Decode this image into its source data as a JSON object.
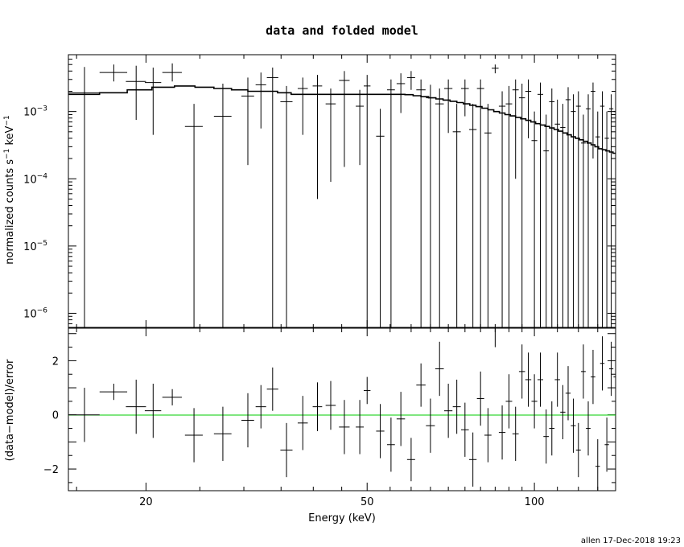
{
  "chart_data": [
    {
      "type": "scatter",
      "title": "data and folded model",
      "xlabel": "",
      "ylabel": "normalized counts s",
      "ylabel_sup1": "−1",
      "ylabel_mid": " keV",
      "ylabel_sup2": "−1",
      "yscale": "log",
      "xscale": "log",
      "xlim": [
        14.5,
        140
      ],
      "ylim": [
        6e-07,
        0.007
      ],
      "ytick_labels": [
        {
          "base": "10",
          "exp": "−3",
          "value": 0.001
        },
        {
          "base": "10",
          "exp": "−4",
          "value": 0.0001
        },
        {
          "base": "10",
          "exp": "−5",
          "value": 1e-05
        },
        {
          "base": "10",
          "exp": "−6",
          "value": 1e-06
        }
      ],
      "series": [
        {
          "kind": "data",
          "x": [
            15.5,
            17.5,
            19.2,
            20.6,
            22.3,
            24.4,
            27.5,
            30.5,
            32.2,
            33.8,
            35.8,
            38.3,
            40.7,
            43.0,
            45.5,
            48.5,
            50.0,
            52.8,
            55.2,
            57.5,
            60.0,
            62.5,
            65.0,
            67.5,
            70.0,
            72.5,
            75.0,
            77.5,
            80.0,
            82.5,
            85.0,
            87.5,
            90.0,
            92.5,
            95.0,
            97.5,
            100,
            102.5,
            105,
            107.5,
            110,
            112.5,
            115,
            117.5,
            120,
            122.5,
            125,
            127.5,
            130,
            132.5,
            135,
            137.5,
            140
          ],
          "xerr": [
            1.0,
            1.0,
            0.8,
            0.7,
            0.9,
            0.9,
            1.0,
            0.8,
            0.7,
            0.8,
            0.9,
            0.8,
            0.8,
            0.9,
            1.0,
            0.8,
            0.7,
            0.9,
            0.9,
            1.0,
            1.0,
            1.2,
            1.2,
            1.2,
            1.2,
            1.2,
            1.2,
            1.2,
            1.2,
            1.2,
            1.2,
            1.2,
            1.2,
            1.2,
            1.2,
            1.2,
            1.2,
            1.2,
            1.2,
            1.2,
            1.2,
            1.2,
            1.2,
            1.2,
            1.2,
            1.2,
            1.2,
            1.2,
            1.2,
            1.2,
            1.2,
            1.2,
            1.2
          ],
          "y": [
            0.0019,
            0.0038,
            0.0028,
            0.0027,
            0.0038,
            0.0006,
            0.00085,
            0.0017,
            0.0025,
            0.0032,
            0.0014,
            0.0022,
            0.0024,
            0.0013,
            0.0029,
            0.0012,
            0.0024,
            0.00043,
            0.0021,
            0.0026,
            0.0032,
            0.0021,
            0.0016,
            0.0013,
            0.0022,
            0.0005,
            0.0022,
            0.00054,
            0.0022,
            0.00048,
            0.0044,
            0.0012,
            0.0013,
            0.0021,
            0.0016,
            0.002,
            0.00037,
            0.0018,
            0.00026,
            0.0014,
            0.00065,
            0.00058,
            0.0015,
            0.001,
            0.0012,
            0.00034,
            0.0011,
            0.002,
            0.00042,
            0.0012,
            0.0004,
            0.0011,
            0.001
          ],
          "ylow": [
            6e-07,
            0.0028,
            0.00075,
            0.00045,
            0.0028,
            6e-07,
            6e-07,
            0.00016,
            0.00056,
            6e-07,
            6e-07,
            0.00045,
            5e-05,
            9e-05,
            0.00015,
            0.00016,
            6e-07,
            6e-07,
            6e-07,
            0.00095,
            0.0021,
            6e-07,
            6e-07,
            6e-07,
            0.00048,
            6e-07,
            0.00085,
            6e-07,
            6e-07,
            6e-07,
            0.0037,
            6e-07,
            6e-07,
            0.0001,
            6e-07,
            0.0004,
            6e-07,
            6e-07,
            6e-07,
            6e-07,
            6e-07,
            6e-07,
            6e-07,
            6e-07,
            6e-07,
            6e-07,
            6e-07,
            0.0002,
            6e-07,
            6e-07,
            6e-07,
            6e-07,
            6e-07
          ],
          "yhigh": [
            0.0046,
            0.005,
            0.0048,
            0.0045,
            0.0052,
            0.0013,
            0.0026,
            0.0032,
            0.0038,
            0.0045,
            0.0024,
            0.0032,
            0.0035,
            0.0022,
            0.004,
            0.0021,
            0.0035,
            0.0011,
            0.003,
            0.0037,
            0.004,
            0.003,
            0.0025,
            0.0022,
            0.003,
            0.0013,
            0.003,
            0.0013,
            0.003,
            0.0013,
            0.005,
            0.002,
            0.0024,
            0.003,
            0.0026,
            0.003,
            0.001,
            0.0027,
            0.0009,
            0.0022,
            0.0015,
            0.0013,
            0.0023,
            0.0018,
            0.002,
            0.0009,
            0.0018,
            0.0027,
            0.001,
            0.002,
            0.001,
            0.0018,
            0.0017
          ]
        },
        {
          "kind": "model",
          "x": [
            14.5,
            16.5,
            18.5,
            20.5,
            22.5,
            24.5,
            26.5,
            28.5,
            30.5,
            32.5,
            34.5,
            36.5,
            38.5,
            40.5,
            42.5,
            44.5,
            46.5,
            48.5,
            50.5,
            52.5,
            54.5,
            56.5,
            58.5,
            60.5,
            62.5,
            64.5,
            66.5,
            68.5,
            70.5,
            72.5,
            74.5,
            76.5,
            78.5,
            80.5,
            82.5,
            84.5,
            86.5,
            88.5,
            90.5,
            92.5,
            94.5,
            96.5,
            98.5,
            100.5,
            102.5,
            104.5,
            106.5,
            108.5,
            110.5,
            112.5,
            114.5,
            116.5,
            118.5,
            120.5,
            122.5,
            124.5,
            126.5,
            128.5,
            130.5,
            132.5,
            134.5,
            136.5,
            138.5,
            140
          ],
          "y": [
            0.0018,
            0.0019,
            0.0021,
            0.0023,
            0.0024,
            0.0023,
            0.0022,
            0.0021,
            0.002,
            0.002,
            0.0019,
            0.0018,
            0.0018,
            0.0018,
            0.0018,
            0.0018,
            0.0018,
            0.0018,
            0.0018,
            0.0018,
            0.0018,
            0.0018,
            0.00178,
            0.00172,
            0.00166,
            0.0016,
            0.00154,
            0.00148,
            0.00142,
            0.00136,
            0.0013,
            0.00124,
            0.00118,
            0.00112,
            0.00106,
            0.001,
            0.00095,
            0.0009,
            0.00086,
            0.00082,
            0.00078,
            0.00074,
            0.0007,
            0.00066,
            0.00063,
            0.0006,
            0.00057,
            0.00054,
            0.00051,
            0.00048,
            0.00045,
            0.00042,
            0.0004,
            0.00038,
            0.00036,
            0.00034,
            0.00032,
            0.0003,
            0.00028,
            0.00027,
            0.00026,
            0.00025,
            0.00024,
            0.00024
          ]
        }
      ]
    },
    {
      "type": "scatter",
      "xlabel": "Energy (keV)",
      "ylabel": "(data−model)/error",
      "xscale": "log",
      "xlim": [
        14.5,
        140
      ],
      "ylim": [
        -2.8,
        3.2
      ],
      "xtick_labels": [
        {
          "label": "20",
          "value": 20
        },
        {
          "label": "50",
          "value": 50
        },
        {
          "label": "100",
          "value": 100
        }
      ],
      "ytick_labels": [
        {
          "label": "2",
          "value": 2
        },
        {
          "label": "0",
          "value": 0
        },
        {
          "label": "−2",
          "value": -2
        }
      ],
      "zero_line_color": "#00cc00",
      "series": [
        {
          "kind": "residuals",
          "x": [
            15.5,
            17.5,
            19.2,
            20.6,
            22.3,
            24.4,
            27.5,
            30.5,
            32.2,
            33.8,
            35.8,
            38.3,
            40.7,
            43.0,
            45.5,
            48.5,
            50.0,
            52.8,
            55.2,
            57.5,
            60.0,
            62.5,
            65.0,
            67.5,
            70.0,
            72.5,
            75.0,
            77.5,
            80.0,
            82.5,
            85.0,
            87.5,
            90.0,
            92.5,
            95.0,
            97.5,
            100,
            102.5,
            105,
            107.5,
            110,
            112.5,
            115,
            117.5,
            120,
            122.5,
            125,
            127.5,
            130,
            132.5,
            135,
            137.5,
            140
          ],
          "y": [
            0,
            0.85,
            0.3,
            0.15,
            0.65,
            -0.75,
            -0.7,
            -0.2,
            0.3,
            0.95,
            -1.3,
            -0.3,
            0.3,
            0.35,
            -0.45,
            -0.45,
            0.9,
            -0.6,
            -1.1,
            -0.15,
            -1.65,
            1.1,
            -0.4,
            1.7,
            0.15,
            0.3,
            -0.55,
            -1.65,
            0.6,
            -0.75,
            3.2,
            -0.65,
            0.5,
            -0.7,
            1.6,
            1.3,
            0.5,
            1.3,
            -0.8,
            -0.5,
            1.3,
            0.1,
            0.8,
            -0.4,
            -1.3,
            1.6,
            -0.5,
            1.4,
            -1.9,
            1.9,
            -1.1,
            1.7,
            1.4
          ],
          "err": [
            1,
            0.3,
            1,
            1,
            0.3,
            1,
            1,
            1,
            0.8,
            0.8,
            1,
            1,
            0.9,
            0.9,
            1,
            1,
            0.5,
            1,
            1,
            1,
            0.8,
            0.8,
            1,
            1,
            1,
            1,
            1,
            1,
            1,
            1,
            0.7,
            1,
            1,
            1,
            1,
            1,
            1,
            1,
            1,
            1,
            1,
            1,
            1,
            1,
            1,
            1,
            1,
            1,
            1,
            1,
            1,
            1,
            1
          ]
        }
      ]
    }
  ],
  "footer": "allen 17-Dec-2018 19:23"
}
